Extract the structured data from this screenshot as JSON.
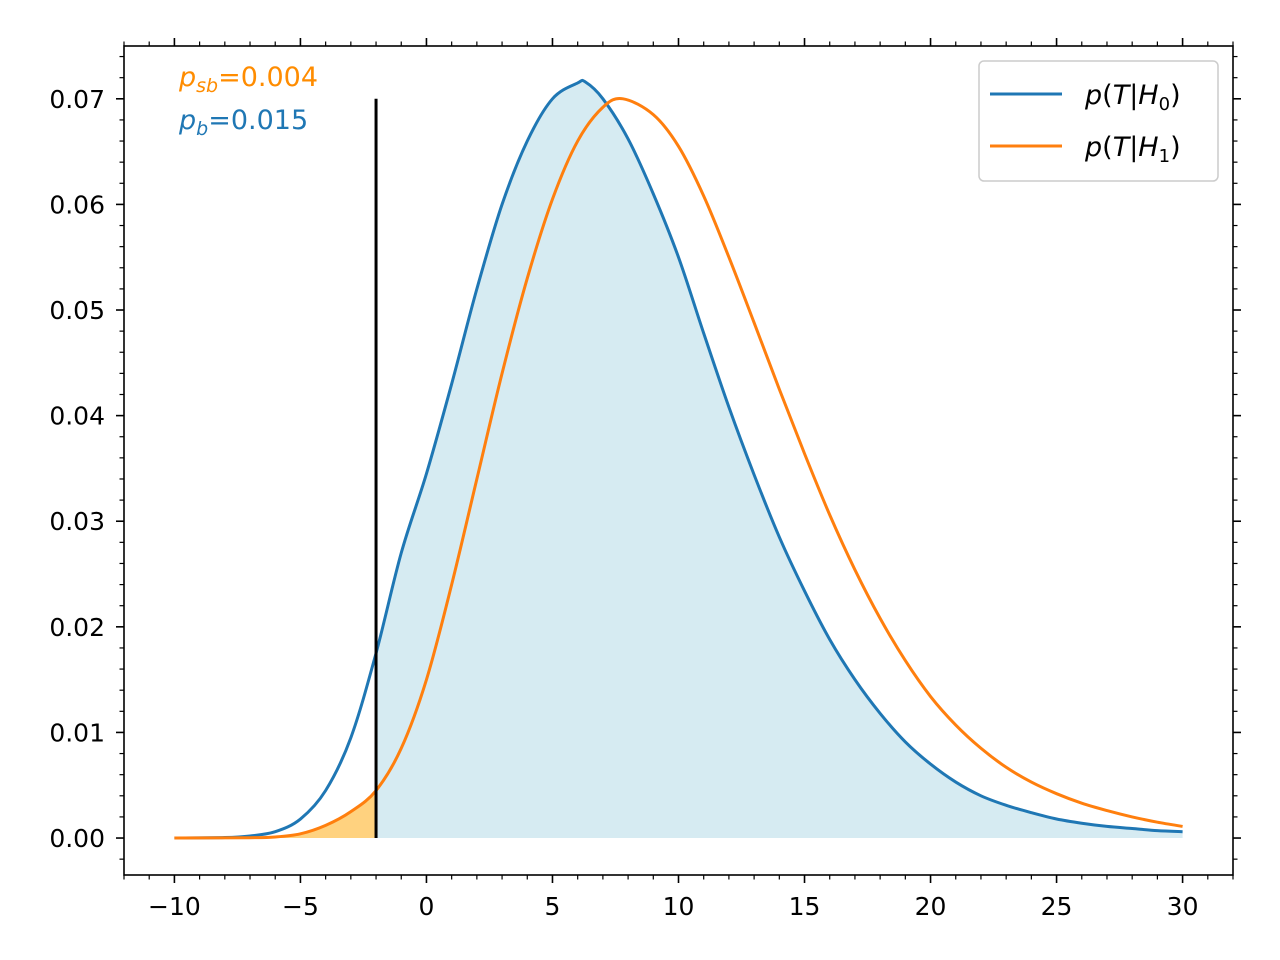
{
  "chart_data": {
    "type": "line",
    "title": "",
    "xlabel": "",
    "ylabel": "",
    "xlim": [
      -12,
      32
    ],
    "ylim": [
      -0.0035,
      0.075
    ],
    "xticks": [
      -10,
      -5,
      0,
      5,
      10,
      15,
      20,
      25,
      30
    ],
    "xtick_labels": [
      "−10",
      "−5",
      "0",
      "5",
      "10",
      "15",
      "20",
      "25",
      "30"
    ],
    "yticks": [
      0.0,
      0.01,
      0.02,
      0.03,
      0.04,
      0.05,
      0.06,
      0.07
    ],
    "ytick_labels": [
      "0.00",
      "0.01",
      "0.02",
      "0.03",
      "0.04",
      "0.05",
      "0.06",
      "0.07"
    ],
    "grid": false,
    "legend_position": "top-right",
    "threshold": {
      "x": -2,
      "y_top": 0.07,
      "color": "#000000"
    },
    "annotations": [
      {
        "main": "p",
        "sub": "sb",
        "value": "=0.004",
        "color": "#ff8c00"
      },
      {
        "main": "p",
        "sub": "b",
        "value": "=0.015",
        "color": "#1f77b4"
      }
    ],
    "fills": [
      {
        "name": "H0 region x ≥ threshold",
        "series": 0,
        "from": -2,
        "to": 30,
        "color": "#add8e6",
        "opacity": 0.5
      },
      {
        "name": "H1 tail x ≤ threshold",
        "series": 1,
        "from": -10,
        "to": -2,
        "color": "#ffa500",
        "opacity": 0.5
      }
    ],
    "series": [
      {
        "name": "p(T|H₀)",
        "legend": {
          "base": "p(T|H",
          "sub": "0",
          "close": ")"
        },
        "color": "#1f77b4",
        "x": [
          -10,
          -8,
          -7,
          -6,
          -5,
          -4,
          -3,
          -2,
          -1,
          0,
          1,
          2,
          3,
          4,
          5,
          6,
          6.3,
          7,
          8,
          9,
          10,
          11,
          12,
          13,
          14,
          15,
          16,
          17,
          18,
          19,
          20,
          21,
          22,
          23,
          24,
          25,
          26,
          27,
          28,
          29,
          30
        ],
        "y": [
          0.0,
          5e-05,
          0.0002,
          0.0006,
          0.0018,
          0.0045,
          0.0095,
          0.0175,
          0.027,
          0.0345,
          0.043,
          0.052,
          0.06,
          0.066,
          0.07,
          0.0715,
          0.0716,
          0.07,
          0.0662,
          0.061,
          0.055,
          0.0478,
          0.0408,
          0.0344,
          0.0285,
          0.0234,
          0.0188,
          0.015,
          0.0118,
          0.0091,
          0.007,
          0.0053,
          0.004,
          0.0031,
          0.0024,
          0.0018,
          0.0014,
          0.0011,
          0.0009,
          0.0007,
          0.0006
        ]
      },
      {
        "name": "p(T|H₁)",
        "legend": {
          "base": "p(T|H",
          "sub": "1",
          "close": ")"
        },
        "color": "#ff7f0e",
        "x": [
          -10,
          -7,
          -6,
          -5,
          -4,
          -3,
          -2,
          -1,
          0,
          1,
          2,
          3,
          4,
          5,
          6,
          7,
          7.8,
          9,
          10,
          11,
          12,
          13,
          14,
          15,
          16,
          17,
          18,
          19,
          20,
          21,
          22,
          23,
          24,
          25,
          26,
          27,
          28,
          29,
          30
        ],
        "y": [
          0.0,
          3e-05,
          0.0001,
          0.0004,
          0.0012,
          0.0025,
          0.0045,
          0.0085,
          0.015,
          0.024,
          0.034,
          0.044,
          0.053,
          0.0605,
          0.066,
          0.0692,
          0.07,
          0.0685,
          0.0655,
          0.0608,
          0.055,
          0.0488,
          0.0425,
          0.0364,
          0.0306,
          0.0254,
          0.0208,
          0.0168,
          0.0134,
          0.0107,
          0.0085,
          0.0067,
          0.0053,
          0.0042,
          0.0033,
          0.0026,
          0.002,
          0.0015,
          0.0011
        ]
      }
    ]
  }
}
